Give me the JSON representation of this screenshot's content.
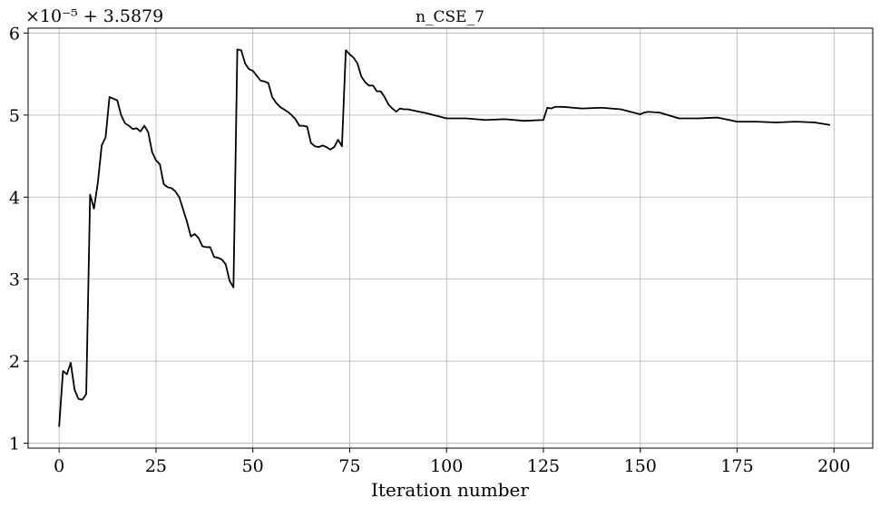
{
  "chart_data": {
    "type": "line",
    "title": "n_CSE_7",
    "xlabel": "Iteration number",
    "ylabel": "",
    "offset_text": "×10⁻⁵ + 3.5879",
    "xlim": [
      -8,
      210
    ],
    "ylim": [
      0.94,
      6.06
    ],
    "xticks": [
      0,
      25,
      50,
      75,
      100,
      125,
      150,
      175,
      200
    ],
    "yticks": [
      1,
      2,
      3,
      4,
      5,
      6
    ],
    "grid": true,
    "line_color": "#000000",
    "series": [
      {
        "x": [
          0,
          1,
          2,
          3,
          4,
          5,
          6,
          7,
          8,
          9,
          10,
          11,
          12,
          13,
          14,
          15,
          16,
          17,
          18,
          19,
          20,
          21,
          22,
          23,
          24,
          25,
          26,
          27,
          28,
          29,
          30,
          31,
          32,
          33,
          34,
          35,
          36,
          37,
          38,
          39,
          40,
          41,
          42,
          43,
          44,
          45,
          46,
          47,
          48,
          49,
          50,
          51,
          52,
          53,
          54,
          55,
          56,
          57,
          58,
          59,
          60,
          61,
          62,
          63,
          64,
          65,
          66,
          67,
          68,
          69,
          70,
          71,
          72,
          73,
          74,
          75,
          76,
          77,
          78,
          79,
          80,
          81,
          82,
          83,
          84,
          85,
          86,
          87,
          88,
          89,
          90,
          95,
          100,
          105,
          110,
          115,
          120,
          125,
          126,
          127,
          128,
          130,
          135,
          140,
          145,
          150,
          151,
          152,
          155,
          160,
          165,
          170,
          175,
          180,
          185,
          190,
          195,
          199
        ],
        "values": [
          1.2,
          1.88,
          1.84,
          1.98,
          1.65,
          1.54,
          1.53,
          1.6,
          4.03,
          3.86,
          4.18,
          4.63,
          4.73,
          5.22,
          5.2,
          5.18,
          5.0,
          4.9,
          4.87,
          4.83,
          4.84,
          4.8,
          4.87,
          4.79,
          4.55,
          4.45,
          4.4,
          4.16,
          4.12,
          4.11,
          4.07,
          4.0,
          3.85,
          3.7,
          3.52,
          3.55,
          3.5,
          3.4,
          3.39,
          3.39,
          3.27,
          3.26,
          3.24,
          3.18,
          2.98,
          2.9,
          5.8,
          5.79,
          5.63,
          5.56,
          5.54,
          5.48,
          5.42,
          5.41,
          5.39,
          5.22,
          5.15,
          5.1,
          5.07,
          5.04,
          5.0,
          4.95,
          4.87,
          4.87,
          4.86,
          4.66,
          4.62,
          4.61,
          4.63,
          4.61,
          4.58,
          4.61,
          4.7,
          4.62,
          5.79,
          5.74,
          5.7,
          5.63,
          5.47,
          5.4,
          5.36,
          5.36,
          5.29,
          5.29,
          5.22,
          5.13,
          5.08,
          5.04,
          5.08,
          5.07,
          5.07,
          5.02,
          4.96,
          4.96,
          4.94,
          4.95,
          4.93,
          4.94,
          5.09,
          5.08,
          5.1,
          5.1,
          5.08,
          5.09,
          5.07,
          5.01,
          5.03,
          5.04,
          5.03,
          4.96,
          4.96,
          4.97,
          4.92,
          4.92,
          4.91,
          4.92,
          4.91,
          4.88
        ]
      }
    ]
  }
}
